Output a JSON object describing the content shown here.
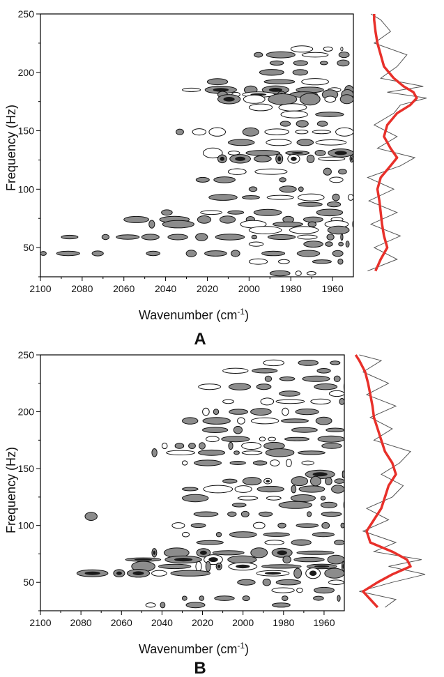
{
  "chart_data": [
    {
      "type": "heatmap",
      "panel_label": "A",
      "xlabel": "Wavenumber (cm",
      "xlabel_sup": "-1",
      "xlabel_close": ")",
      "ylabel": "Frequency (Hz)",
      "xlim": [
        2100,
        1950
      ],
      "ylim": [
        25,
        250
      ],
      "xticks": [
        2100,
        2080,
        2060,
        2040,
        2020,
        2000,
        1980,
        1960
      ],
      "yticks": [
        50,
        100,
        150,
        200,
        250
      ],
      "colors": {
        "contour_fill": "#8c8c8c",
        "contour_dark": "#1a1a1a",
        "side_thin": "#555555",
        "side_smooth": "#e8302a"
      },
      "contour_bands": [
        {
          "freq": 235,
          "from": 1982,
          "to": 1962,
          "density": 0.3
        },
        {
          "freq": 220,
          "from": 1980,
          "to": 1955,
          "density": 0.45
        },
        {
          "freq": 215,
          "from": 2022,
          "to": 1952,
          "density": 0.45
        },
        {
          "freq": 208,
          "from": 1990,
          "to": 1952,
          "density": 0.4
        },
        {
          "freq": 200,
          "from": 1995,
          "to": 1955,
          "density": 0.4
        },
        {
          "freq": 192,
          "from": 2020,
          "to": 1950,
          "density": 0.5
        },
        {
          "freq": 185,
          "from": 2032,
          "to": 1950,
          "density": 0.8
        },
        {
          "freq": 181,
          "from": 2015,
          "to": 1950,
          "density": 1.0
        },
        {
          "freq": 177,
          "from": 2015,
          "to": 1950,
          "density": 1.0
        },
        {
          "freq": 170,
          "from": 2000,
          "to": 1950,
          "density": 0.7
        },
        {
          "freq": 164,
          "from": 2000,
          "to": 1952,
          "density": 0.6
        },
        {
          "freq": 156,
          "from": 1985,
          "to": 1958,
          "density": 0.4
        },
        {
          "freq": 149,
          "from": 2035,
          "to": 1950,
          "density": 0.6
        },
        {
          "freq": 140,
          "from": 2010,
          "to": 1952,
          "density": 0.5
        },
        {
          "freq": 131,
          "from": 2022,
          "to": 1950,
          "density": 0.8
        },
        {
          "freq": 126,
          "from": 2015,
          "to": 1950,
          "density": 0.8
        },
        {
          "freq": 115,
          "from": 2010,
          "to": 1952,
          "density": 0.6
        },
        {
          "freq": 108,
          "from": 2050,
          "to": 1955,
          "density": 0.4
        },
        {
          "freq": 100,
          "from": 2000,
          "to": 1955,
          "density": 0.4
        },
        {
          "freq": 93,
          "from": 2030,
          "to": 1950,
          "density": 0.5
        },
        {
          "freq": 87,
          "from": 2000,
          "to": 1952,
          "density": 0.5
        },
        {
          "freq": 80,
          "from": 2042,
          "to": 1955,
          "density": 0.4
        },
        {
          "freq": 74,
          "from": 2060,
          "to": 1955,
          "density": 0.5
        },
        {
          "freq": 70,
          "from": 2048,
          "to": 1950,
          "density": 0.6
        },
        {
          "freq": 65,
          "from": 2000,
          "to": 1952,
          "density": 0.6
        },
        {
          "freq": 59,
          "from": 2090,
          "to": 1955,
          "density": 0.5
        },
        {
          "freq": 53,
          "from": 2000,
          "to": 1952,
          "density": 0.6
        },
        {
          "freq": 45,
          "from": 2100,
          "to": 1955,
          "density": 0.4
        },
        {
          "freq": 38,
          "from": 2000,
          "to": 1955,
          "density": 0.4
        },
        {
          "freq": 28,
          "from": 1990,
          "to": 1952,
          "density": 0.3
        }
      ],
      "side_profile": [
        {
          "f": 30,
          "smooth": 0.22,
          "raw": 0.1
        },
        {
          "f": 40,
          "smooth": 0.3,
          "raw": 0.55
        },
        {
          "f": 50,
          "smooth": 0.4,
          "raw": 0.2
        },
        {
          "f": 60,
          "smooth": 0.35,
          "raw": 0.6
        },
        {
          "f": 70,
          "smooth": 0.32,
          "raw": 0.15
        },
        {
          "f": 80,
          "smooth": 0.3,
          "raw": 0.55
        },
        {
          "f": 90,
          "smooth": 0.28,
          "raw": 0.12
        },
        {
          "f": 100,
          "smooth": 0.25,
          "raw": 0.5
        },
        {
          "f": 110,
          "smooth": 0.3,
          "raw": 0.1
        },
        {
          "f": 120,
          "smooth": 0.45,
          "raw": 0.6
        },
        {
          "f": 127,
          "smooth": 0.55,
          "raw": 0.82
        },
        {
          "f": 135,
          "smooth": 0.45,
          "raw": 0.25
        },
        {
          "f": 145,
          "smooth": 0.35,
          "raw": 0.55
        },
        {
          "f": 155,
          "smooth": 0.4,
          "raw": 0.2
        },
        {
          "f": 165,
          "smooth": 0.55,
          "raw": 0.5
        },
        {
          "f": 172,
          "smooth": 0.75,
          "raw": 0.6
        },
        {
          "f": 178,
          "smooth": 0.85,
          "raw": 1.0
        },
        {
          "f": 183,
          "smooth": 0.8,
          "raw": 0.4
        },
        {
          "f": 188,
          "smooth": 0.65,
          "raw": 0.95
        },
        {
          "f": 195,
          "smooth": 0.5,
          "raw": 0.3
        },
        {
          "f": 205,
          "smooth": 0.35,
          "raw": 0.55
        },
        {
          "f": 215,
          "smooth": 0.3,
          "raw": 0.7
        },
        {
          "f": 225,
          "smooth": 0.25,
          "raw": 0.2
        },
        {
          "f": 235,
          "smooth": 0.22,
          "raw": 0.45
        },
        {
          "f": 245,
          "smooth": 0.2,
          "raw": 0.3
        },
        {
          "f": 250,
          "smooth": 0.2,
          "raw": 0.15
        }
      ]
    },
    {
      "type": "heatmap",
      "panel_label": "B",
      "xlabel": "Wavenumber (cm",
      "xlabel_sup": "-1",
      "xlabel_close": ")",
      "ylabel": "Frequency (Hz)",
      "xlim": [
        2100,
        1950
      ],
      "ylim": [
        25,
        250
      ],
      "xticks": [
        2100,
        2080,
        2060,
        2040,
        2020,
        2000,
        1980,
        1960
      ],
      "yticks": [
        50,
        100,
        150,
        200,
        250
      ],
      "colors": {
        "contour_fill": "#8c8c8c",
        "contour_dark": "#1a1a1a",
        "side_thin": "#555555",
        "side_smooth": "#e8302a"
      },
      "contour_bands": [
        {
          "freq": 243,
          "from": 1990,
          "to": 1952,
          "density": 0.3
        },
        {
          "freq": 236,
          "from": 2010,
          "to": 1952,
          "density": 0.35
        },
        {
          "freq": 229,
          "from": 2000,
          "to": 1952,
          "density": 0.4
        },
        {
          "freq": 222,
          "from": 2022,
          "to": 1950,
          "density": 0.55
        },
        {
          "freq": 216,
          "from": 2000,
          "to": 1950,
          "density": 0.6
        },
        {
          "freq": 209,
          "from": 2010,
          "to": 1950,
          "density": 0.5
        },
        {
          "freq": 200,
          "from": 2020,
          "to": 1950,
          "density": 0.55
        },
        {
          "freq": 192,
          "from": 2030,
          "to": 1950,
          "density": 0.5
        },
        {
          "freq": 184,
          "from": 2020,
          "to": 1950,
          "density": 0.5
        },
        {
          "freq": 176,
          "from": 2030,
          "to": 1950,
          "density": 0.45
        },
        {
          "freq": 170,
          "from": 2040,
          "to": 1950,
          "density": 0.45
        },
        {
          "freq": 164,
          "from": 2045,
          "to": 1950,
          "density": 0.6
        },
        {
          "freq": 155,
          "from": 2030,
          "to": 1950,
          "density": 0.5
        },
        {
          "freq": 145,
          "from": 2010,
          "to": 1950,
          "density": 0.8
        },
        {
          "freq": 139,
          "from": 2010,
          "to": 1950,
          "density": 0.8
        },
        {
          "freq": 132,
          "from": 2030,
          "to": 1950,
          "density": 0.7
        },
        {
          "freq": 124,
          "from": 2030,
          "to": 1950,
          "density": 0.55
        },
        {
          "freq": 118,
          "from": 2020,
          "to": 1950,
          "density": 0.6
        },
        {
          "freq": 110,
          "from": 2040,
          "to": 1950,
          "density": 0.45
        },
        {
          "freq": 108,
          "from": 2078,
          "to": 2072,
          "density": 1.0
        },
        {
          "freq": 100,
          "from": 2035,
          "to": 1950,
          "density": 0.4
        },
        {
          "freq": 92,
          "from": 2030,
          "to": 1950,
          "density": 0.45
        },
        {
          "freq": 85,
          "from": 2040,
          "to": 1950,
          "density": 0.4
        },
        {
          "freq": 76,
          "from": 2045,
          "to": 1950,
          "density": 0.8
        },
        {
          "freq": 70,
          "from": 2058,
          "to": 1950,
          "density": 0.9
        },
        {
          "freq": 64,
          "from": 2055,
          "to": 1950,
          "density": 0.85
        },
        {
          "freq": 58,
          "from": 2082,
          "to": 1950,
          "density": 0.9
        },
        {
          "freq": 50,
          "from": 2020,
          "to": 1950,
          "density": 0.45
        },
        {
          "freq": 43,
          "from": 2000,
          "to": 1955,
          "density": 0.35
        },
        {
          "freq": 36,
          "from": 2030,
          "to": 1952,
          "density": 0.35
        },
        {
          "freq": 30,
          "from": 2048,
          "to": 1955,
          "density": 0.3
        }
      ],
      "side_profile": [
        {
          "f": 28,
          "smooth": 0.35,
          "raw": 0.45
        },
        {
          "f": 35,
          "smooth": 0.25,
          "raw": 0.6
        },
        {
          "f": 42,
          "smooth": 0.15,
          "raw": 0.1
        },
        {
          "f": 50,
          "smooth": 0.35,
          "raw": 0.55
        },
        {
          "f": 57,
          "smooth": 0.55,
          "raw": 1.0
        },
        {
          "f": 64,
          "smooth": 0.8,
          "raw": 0.5
        },
        {
          "f": 70,
          "smooth": 0.75,
          "raw": 0.95
        },
        {
          "f": 77,
          "smooth": 0.55,
          "raw": 0.3
        },
        {
          "f": 85,
          "smooth": 0.25,
          "raw": 0.6
        },
        {
          "f": 95,
          "smooth": 0.2,
          "raw": 0.15
        },
        {
          "f": 105,
          "smooth": 0.3,
          "raw": 0.5
        },
        {
          "f": 115,
          "smooth": 0.4,
          "raw": 0.2
        },
        {
          "f": 125,
          "smooth": 0.45,
          "raw": 0.55
        },
        {
          "f": 135,
          "smooth": 0.5,
          "raw": 0.7
        },
        {
          "f": 145,
          "smooth": 0.6,
          "raw": 0.4
        },
        {
          "f": 155,
          "smooth": 0.55,
          "raw": 0.65
        },
        {
          "f": 165,
          "smooth": 0.45,
          "raw": 0.8
        },
        {
          "f": 175,
          "smooth": 0.4,
          "raw": 0.3
        },
        {
          "f": 185,
          "smooth": 0.35,
          "raw": 0.55
        },
        {
          "f": 195,
          "smooth": 0.3,
          "raw": 0.25
        },
        {
          "f": 205,
          "smooth": 0.28,
          "raw": 0.6
        },
        {
          "f": 215,
          "smooth": 0.25,
          "raw": 0.2
        },
        {
          "f": 225,
          "smooth": 0.22,
          "raw": 0.5
        },
        {
          "f": 235,
          "smooth": 0.18,
          "raw": 0.15
        },
        {
          "f": 245,
          "smooth": 0.1,
          "raw": 0.4
        },
        {
          "f": 250,
          "smooth": 0.05,
          "raw": 0.1
        }
      ]
    }
  ]
}
